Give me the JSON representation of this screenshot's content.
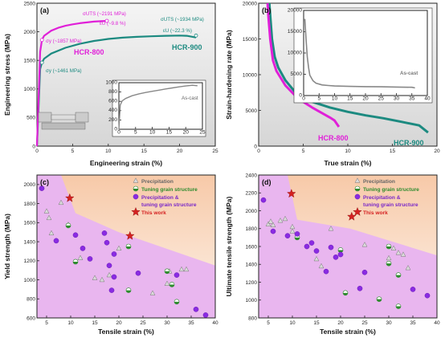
{
  "colors": {
    "hcr800": "#e020d8",
    "hcr900": "#1c8a80",
    "ascast": "#888888",
    "work": "#d42020",
    "region": "#e9b6ef",
    "bgTop": "#fbe3d2"
  },
  "chart_data": [
    {
      "panel": "(a)",
      "type": "line",
      "xlabel": "Engineering strain (%)",
      "ylabel": "Engineering stress (MPa)",
      "xlim": [
        0,
        25
      ],
      "ylim": [
        0,
        2500
      ],
      "xticks": [
        0,
        5,
        10,
        15,
        20,
        25
      ],
      "yticks": [
        0,
        500,
        1000,
        1500,
        2000,
        2500
      ],
      "series": [
        {
          "name": "HCR-800",
          "x": [
            0,
            0.45,
            0.7,
            1,
            2,
            3,
            4,
            5,
            6,
            7,
            8,
            9,
            9.8
          ],
          "y": [
            0,
            1650,
            1857,
            1930,
            2020,
            2070,
            2105,
            2130,
            2150,
            2165,
            2178,
            2186,
            2191
          ]
        },
        {
          "name": "HCR-900",
          "x": [
            0,
            0.45,
            0.7,
            1,
            2,
            4,
            6,
            8,
            10,
            12,
            14,
            16,
            18,
            20,
            21,
            22.3
          ],
          "y": [
            0,
            1350,
            1461,
            1530,
            1620,
            1720,
            1790,
            1840,
            1875,
            1898,
            1912,
            1922,
            1930,
            1934,
            1930,
            1900
          ]
        }
      ],
      "annotations": [
        {
          "text": "σUTS (~2191 MPa)",
          "color": "#e020d8"
        },
        {
          "text": "εU (~9.8 %)",
          "color": "#e020d8"
        },
        {
          "text": "σy (~1857 MPa)",
          "color": "#e020d8"
        },
        {
          "text": "σUTS (~1934 MPa)",
          "color": "#1c8a80"
        },
        {
          "text": "εU (~22.3 %)",
          "color": "#1c8a80"
        },
        {
          "text": "σy (~1461 MPa)",
          "color": "#1c8a80"
        }
      ],
      "inset": {
        "label": "As-cast",
        "xlim": [
          0,
          25
        ],
        "ylim": [
          0,
          1000
        ],
        "xticks": [
          0,
          5,
          10,
          15,
          20,
          25
        ],
        "yticks": [
          0,
          200,
          400,
          600,
          800,
          1000
        ],
        "x": [
          0,
          0.4,
          1,
          2,
          4,
          6,
          8,
          10,
          12,
          14,
          16,
          18,
          20,
          22,
          23.5
        ],
        "y": [
          0,
          520,
          610,
          660,
          720,
          760,
          790,
          815,
          840,
          865,
          888,
          910,
          930,
          945,
          935
        ]
      }
    },
    {
      "panel": "(b)",
      "type": "line",
      "xlabel": "True strain (%)",
      "ylabel": "Strain-hardening rate (MPa)",
      "xlim": [
        0,
        20
      ],
      "ylim": [
        0,
        20000
      ],
      "xticks": [
        0,
        5,
        10,
        15,
        20
      ],
      "yticks": [
        0,
        5000,
        10000,
        15000,
        20000
      ],
      "series": [
        {
          "name": "HCR-800",
          "x": [
            1.0,
            1.1,
            1.3,
            1.6,
            2.0,
            3,
            4,
            5,
            6,
            7,
            8,
            8.5,
            9.0
          ],
          "y": [
            20000,
            18000,
            15000,
            12000,
            10500,
            8500,
            7200,
            6200,
            5400,
            4700,
            4000,
            3600,
            2700
          ]
        },
        {
          "name": "HCR-900",
          "x": [
            1.2,
            1.5,
            1.8,
            2.2,
            3,
            4,
            5,
            6,
            8,
            10,
            12,
            14,
            16,
            18,
            19
          ],
          "y": [
            20000,
            15000,
            12500,
            11000,
            9200,
            7700,
            6800,
            6200,
            5400,
            4800,
            4300,
            3900,
            3400,
            2900,
            1900
          ]
        }
      ],
      "inset": {
        "label": "As-cast",
        "xlim": [
          0,
          40
        ],
        "ylim": [
          0,
          20000
        ],
        "xticks": [
          0,
          5,
          10,
          15,
          20,
          25,
          30,
          35,
          40
        ],
        "yticks": [
          0,
          5000,
          10000,
          15000,
          20000
        ],
        "x": [
          0.4,
          0.8,
          1.2,
          1.6,
          2,
          3,
          4,
          6,
          8,
          10,
          15,
          20,
          25,
          30,
          35,
          36
        ],
        "y": [
          18000,
          13000,
          9000,
          6500,
          4800,
          3500,
          2900,
          2500,
          2350,
          2250,
          2150,
          2100,
          2050,
          2000,
          1950,
          1800
        ]
      }
    },
    {
      "panel": "(c)",
      "type": "scatter",
      "xlabel": "Tensile strain (%)",
      "ylabel": "Yield strength (MPa)",
      "xlim": [
        3,
        40
      ],
      "ylim": [
        600,
        2100
      ],
      "xticks": [
        5,
        10,
        15,
        20,
        25,
        30,
        35,
        40
      ],
      "yticks": [
        600,
        800,
        1000,
        1200,
        1400,
        1600,
        1800,
        2000
      ],
      "legend": [
        "Precipitation",
        "Tuning grain structure",
        "Precipitation & tuning grain structure",
        "This work"
      ],
      "series": [
        {
          "name": "Precipitation",
          "points": [
            [
              5,
              1720
            ],
            [
              5.5,
              1650
            ],
            [
              6,
              1490
            ],
            [
              8,
              1810
            ],
            [
              9.5,
              1580
            ],
            [
              12,
              1230
            ],
            [
              15,
              1020
            ],
            [
              16.5,
              1000
            ],
            [
              18,
              1050
            ],
            [
              20,
              1330
            ],
            [
              27,
              860
            ],
            [
              30,
              960
            ],
            [
              30.5,
              1090
            ],
            [
              33,
              1110
            ],
            [
              34,
              1110
            ]
          ]
        },
        {
          "name": "Tuning grain structure",
          "points": [
            [
              9.5,
              1570
            ],
            [
              11,
              1190
            ],
            [
              22,
              1350
            ],
            [
              22,
              890
            ],
            [
              30,
              1090
            ],
            [
              31,
              950
            ],
            [
              32,
              770
            ]
          ]
        },
        {
          "name": "Precipitation & tuning grain structure",
          "points": [
            [
              4,
              1960
            ],
            [
              7,
              1410
            ],
            [
              11,
              1470
            ],
            [
              12.5,
              1330
            ],
            [
              14,
              1220
            ],
            [
              17,
              1490
            ],
            [
              17.5,
              1390
            ],
            [
              18,
              1150
            ],
            [
              19,
              1270
            ],
            [
              19,
              1030
            ],
            [
              18.5,
              890
            ],
            [
              24,
              1070
            ],
            [
              32,
              1050
            ],
            [
              36,
              690
            ],
            [
              38,
              630
            ]
          ]
        },
        {
          "name": "This work",
          "points": [
            [
              9.8,
              1857
            ],
            [
              22.3,
              1461
            ]
          ]
        }
      ]
    },
    {
      "panel": "(d)",
      "type": "scatter",
      "xlabel": "Tensile strain (%)",
      "ylabel": "Ultimate tensile strength (MPa)",
      "xlim": [
        3,
        40
      ],
      "ylim": [
        800,
        2400
      ],
      "xticks": [
        5,
        10,
        15,
        20,
        25,
        30,
        35,
        40
      ],
      "yticks": [
        800,
        1000,
        1200,
        1400,
        1600,
        1800,
        2000,
        2200,
        2400
      ],
      "legend": [
        "Precipitation",
        "Tuning grain structure",
        "Precipitation & tuning grain structure",
        "This work"
      ],
      "series": [
        {
          "name": "Precipitation",
          "points": [
            [
              5,
              1850
            ],
            [
              5.5,
              1880
            ],
            [
              6,
              1840
            ],
            [
              7.5,
              1890
            ],
            [
              8.5,
              1910
            ],
            [
              10,
              1820
            ],
            [
              10,
              1770
            ],
            [
              15,
              1460
            ],
            [
              16,
              1380
            ],
            [
              18,
              1800
            ],
            [
              25,
              1620
            ],
            [
              30,
              1470
            ],
            [
              31,
              1580
            ],
            [
              32,
              1530
            ],
            [
              33,
              1510
            ],
            [
              34,
              1360
            ]
          ]
        },
        {
          "name": "Tuning grain structure",
          "points": [
            [
              11,
              1700
            ],
            [
              20,
              1560
            ],
            [
              21,
              1080
            ],
            [
              28,
              1010
            ],
            [
              30,
              1600
            ],
            [
              30,
              1410
            ],
            [
              32,
              1280
            ],
            [
              32,
              930
            ]
          ]
        },
        {
          "name": "Precipitation & tuning grain structure",
          "points": [
            [
              4,
              2120
            ],
            [
              6,
              1770
            ],
            [
              9,
              1720
            ],
            [
              11,
              1740
            ],
            [
              13,
              1600
            ],
            [
              14,
              1640
            ],
            [
              15,
              1550
            ],
            [
              17,
              1320
            ],
            [
              18,
              1590
            ],
            [
              19,
              1480
            ],
            [
              20,
              1510
            ],
            [
              24,
              1130
            ],
            [
              25,
              1310
            ],
            [
              35,
              1120
            ],
            [
              38,
              1050
            ]
          ]
        },
        {
          "name": "This work",
          "points": [
            [
              9.8,
              2191
            ],
            [
              22.3,
              1934
            ]
          ]
        }
      ]
    }
  ],
  "labels": {
    "a": {
      "panel": "(a)",
      "xlabel": "Engineering strain (%)",
      "ylabel": "Engineering stress (MPa)",
      "hcr800": "HCR-800",
      "hcr900": "HCR-900",
      "ascast": "As-cast"
    },
    "b": {
      "panel": "(b)",
      "xlabel": "True strain (%)",
      "ylabel": "Strain-hardening rate (MPa)",
      "hcr800": "HCR-800",
      "hcr900": "HCR-900",
      "ascast": "As-cast"
    },
    "c": {
      "panel": "(c)",
      "xlabel": "Tensile strain (%)",
      "ylabel": "Yield strength (MPa)"
    },
    "d": {
      "panel": "(d)",
      "xlabel": "Tensile strain (%)",
      "ylabel": "Ultimate tensile strength (MPa)"
    },
    "legend": {
      "precip": "Precipitation",
      "tuning": "Tuning grain structure",
      "both1": "Precipitation &",
      "both2": "tuning grain structure",
      "work": "This work"
    }
  }
}
